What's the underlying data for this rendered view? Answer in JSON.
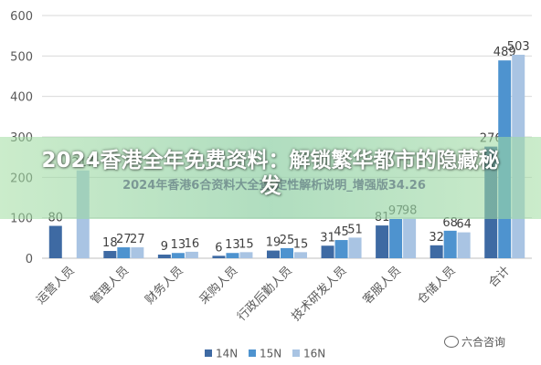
{
  "chart_data": {
    "type": "bar",
    "categories": [
      "运营人员",
      "管理人员",
      "财务人员",
      "采购人员",
      "行政后勤人员",
      "技术研发人员",
      "客服人员",
      "仓储人员",
      "合计"
    ],
    "series": [
      {
        "name": "14N",
        "color": "#3e6aa3",
        "values": [
          80,
          18,
          9,
          6,
          19,
          31,
          81,
          32,
          276
        ]
      },
      {
        "name": "15N",
        "color": "#4e93cf",
        "values": [
          null,
          27,
          13,
          13,
          25,
          45,
          97,
          68,
          489
        ]
      },
      {
        "name": "16N",
        "color": "#a9c4e3",
        "values": [
          217,
          27,
          16,
          15,
          15,
          51,
          98,
          64,
          503
        ]
      }
    ],
    "y_ticks": [
      0,
      100,
      200,
      300,
      400,
      500,
      600
    ],
    "ylim": [
      0,
      600
    ],
    "grid": true,
    "legend_position": "bottom"
  },
  "banner": {
    "title": "2024香港全年免费资料：解锁繁华都市的隐藏秘发",
    "subtitle": "2024年香港6合资料大全查,定性解析说明_增强版34.26"
  },
  "watermark": {
    "text": "六合咨询"
  }
}
